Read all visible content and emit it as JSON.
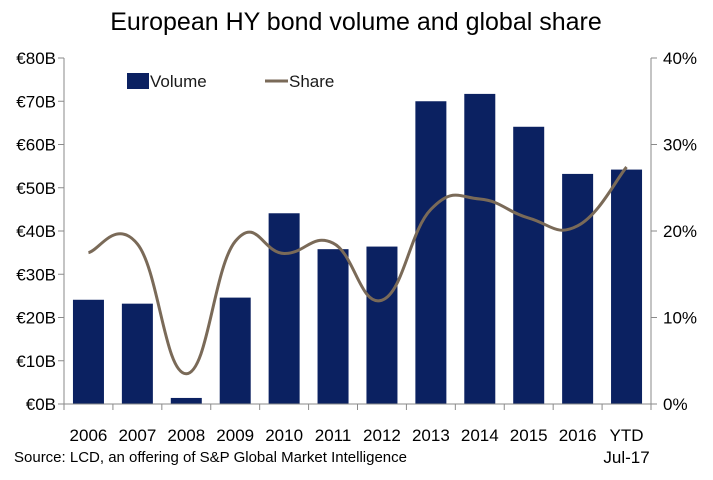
{
  "chart_data": {
    "type": "bar",
    "title": "European HY bond volume and global share",
    "categories": [
      "2006",
      "2007",
      "2008",
      "2009",
      "2010",
      "2011",
      "2012",
      "2013",
      "2014",
      "2015",
      "2016",
      "YTD Jul-17"
    ],
    "category_lines": [
      [
        "2006"
      ],
      [
        "2007"
      ],
      [
        "2008"
      ],
      [
        "2009"
      ],
      [
        "2010"
      ],
      [
        "2011"
      ],
      [
        "2012"
      ],
      [
        "2013"
      ],
      [
        "2014"
      ],
      [
        "2015"
      ],
      [
        "2016"
      ],
      [
        "YTD",
        "Jul-17"
      ]
    ],
    "series": [
      {
        "name": "Volume",
        "type": "bar",
        "axis": "left",
        "color": "#0b2161",
        "values": [
          24.1,
          23.2,
          1.4,
          24.6,
          44.1,
          35.8,
          36.4,
          70.0,
          71.7,
          64.1,
          53.2,
          54.2
        ]
      },
      {
        "name": "Share",
        "type": "line",
        "axis": "right",
        "color": "#7a6a58",
        "values": [
          17.5,
          18.5,
          3.5,
          18.8,
          17.4,
          18.6,
          12.0,
          22.5,
          23.7,
          21.5,
          20.6,
          27.4
        ]
      }
    ],
    "y_left": {
      "ylim": [
        0,
        80
      ],
      "ticks": [
        0,
        10,
        20,
        30,
        40,
        50,
        60,
        70,
        80
      ],
      "tick_labels": [
        "€0B",
        "€10B",
        "€20B",
        "€30B",
        "€40B",
        "€50B",
        "€60B",
        "€70B",
        "€80B"
      ]
    },
    "y_right": {
      "ylim": [
        0,
        40
      ],
      "ticks": [
        0,
        10,
        20,
        30,
        40
      ],
      "tick_labels": [
        "0%",
        "10%",
        "20%",
        "30%",
        "40%"
      ]
    },
    "grid": false,
    "legend": {
      "position": "top-left",
      "entries": [
        "Volume",
        "Share"
      ]
    }
  },
  "source_note": "Source: LCD, an offering of S&P Global Market Intelligence"
}
